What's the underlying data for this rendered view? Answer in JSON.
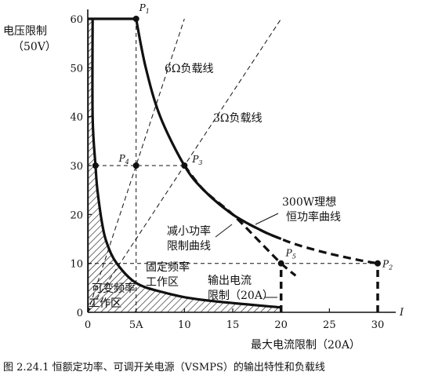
{
  "chart_data": {
    "type": "line",
    "caption": "图 2.24.1   恒额定功率、可调开关电源（VSMPS）的输出特性和负载线",
    "xlabel": "最大电流限制（20A）",
    "ylabel": "电压限制",
    "ylabel_sub": "（50V）",
    "x_axis_end": "I",
    "xlim": [
      0,
      31
    ],
    "ylim": [
      0,
      62
    ],
    "x_ticks": [
      {
        "value": 0,
        "label": "0"
      },
      {
        "value": 5,
        "label": "5A"
      },
      {
        "value": 10,
        "label": "10"
      },
      {
        "value": 15,
        "label": "15"
      },
      {
        "value": 20,
        "label": "20"
      },
      {
        "value": 25,
        "label": "25"
      },
      {
        "value": 30,
        "label": "30"
      }
    ],
    "y_ticks": [
      0,
      10,
      20,
      30,
      40,
      50,
      60
    ],
    "series": [
      {
        "name": "",
        "style": "solid",
        "points": [
          [
            0,
            60
          ],
          [
            5,
            60
          ],
          [
            6,
            50
          ],
          [
            7.5,
            40
          ],
          [
            10,
            30
          ],
          [
            12,
            25
          ],
          [
            15,
            20
          ],
          [
            18,
            16.7
          ],
          [
            20,
            15
          ]
        ]
      },
      {
        "name": "300W理想恒功率曲线",
        "style": "dashed",
        "points": [
          [
            10,
            30
          ],
          [
            12,
            25
          ],
          [
            15,
            20
          ],
          [
            18,
            16.7
          ],
          [
            20,
            15
          ],
          [
            22,
            13.6
          ],
          [
            25,
            12
          ],
          [
            28,
            10.7
          ],
          [
            30,
            10
          ]
        ]
      },
      {
        "name": "减小功率限制曲线",
        "style": "dashed",
        "points": [
          [
            10,
            30
          ],
          [
            12,
            25
          ],
          [
            15,
            20
          ],
          [
            18,
            14
          ],
          [
            20,
            10
          ],
          [
            21.5,
            7.5
          ]
        ]
      },
      {
        "name": "",
        "style": "solid",
        "points": [
          [
            0.5,
            60
          ],
          [
            0.5,
            40
          ],
          [
            0.8,
            30
          ],
          [
            1,
            25
          ],
          [
            1.5,
            18
          ],
          [
            2,
            14
          ],
          [
            3,
            10
          ],
          [
            5,
            6
          ],
          [
            8,
            4
          ],
          [
            12,
            2.5
          ],
          [
            20,
            1
          ]
        ]
      },
      {
        "name": "6Ω负载线",
        "style": "dashed",
        "points": [
          [
            0,
            0
          ],
          [
            10,
            60
          ]
        ]
      },
      {
        "name": "3Ω负载线",
        "style": "dashed",
        "points": [
          [
            0,
            0
          ],
          [
            20,
            60
          ]
        ]
      }
    ],
    "reference_lines": [
      {
        "style": "dashed",
        "points": [
          [
            0.8,
            30
          ],
          [
            10,
            30
          ]
        ]
      },
      {
        "style": "dashed",
        "points": [
          [
            5,
            0
          ],
          [
            5,
            60
          ]
        ]
      },
      {
        "style": "dashed",
        "points": [
          [
            0,
            10
          ],
          [
            30,
            10
          ]
        ]
      },
      {
        "style": "thick-dashed",
        "points": [
          [
            20,
            0
          ],
          [
            20,
            10
          ]
        ]
      },
      {
        "style": "thick-dashed",
        "points": [
          [
            30,
            0
          ],
          [
            30,
            10
          ]
        ]
      }
    ],
    "points": [
      {
        "label": "P",
        "sub": "1",
        "x": 5,
        "y": 60
      },
      {
        "label": "P",
        "sub": "2",
        "x": 30,
        "y": 10
      },
      {
        "label": "P",
        "sub": "3",
        "x": 10,
        "y": 30
      },
      {
        "label": "P",
        "sub": "4",
        "x": 5,
        "y": 30
      },
      {
        "label": "P",
        "sub": "5",
        "x": 20,
        "y": 10
      }
    ],
    "markers": [
      {
        "x": 0.8,
        "y": 30
      },
      {
        "x": 5,
        "y": 30
      },
      {
        "x": 10,
        "y": 30
      },
      {
        "x": 20,
        "y": 10
      },
      {
        "x": 30,
        "y": 10
      },
      {
        "x": 5,
        "y": 60
      }
    ],
    "annotations": [
      {
        "id": "load6",
        "lines": [
          "6Ω负载线"
        ]
      },
      {
        "id": "load3",
        "lines": [
          "3Ω负载线"
        ]
      },
      {
        "id": "ideal",
        "lines": [
          "300W理想",
          "恒功率曲线"
        ]
      },
      {
        "id": "reduced",
        "lines": [
          "减小功率",
          "限制曲线"
        ]
      },
      {
        "id": "fixed",
        "lines": [
          "固定频率",
          "工作区"
        ]
      },
      {
        "id": "variable",
        "lines": [
          "可变频率",
          "工作区"
        ]
      },
      {
        "id": "ilimit",
        "lines": [
          "输出电流",
          "限制（20A）"
        ]
      }
    ],
    "grid": false,
    "legend": "none"
  }
}
